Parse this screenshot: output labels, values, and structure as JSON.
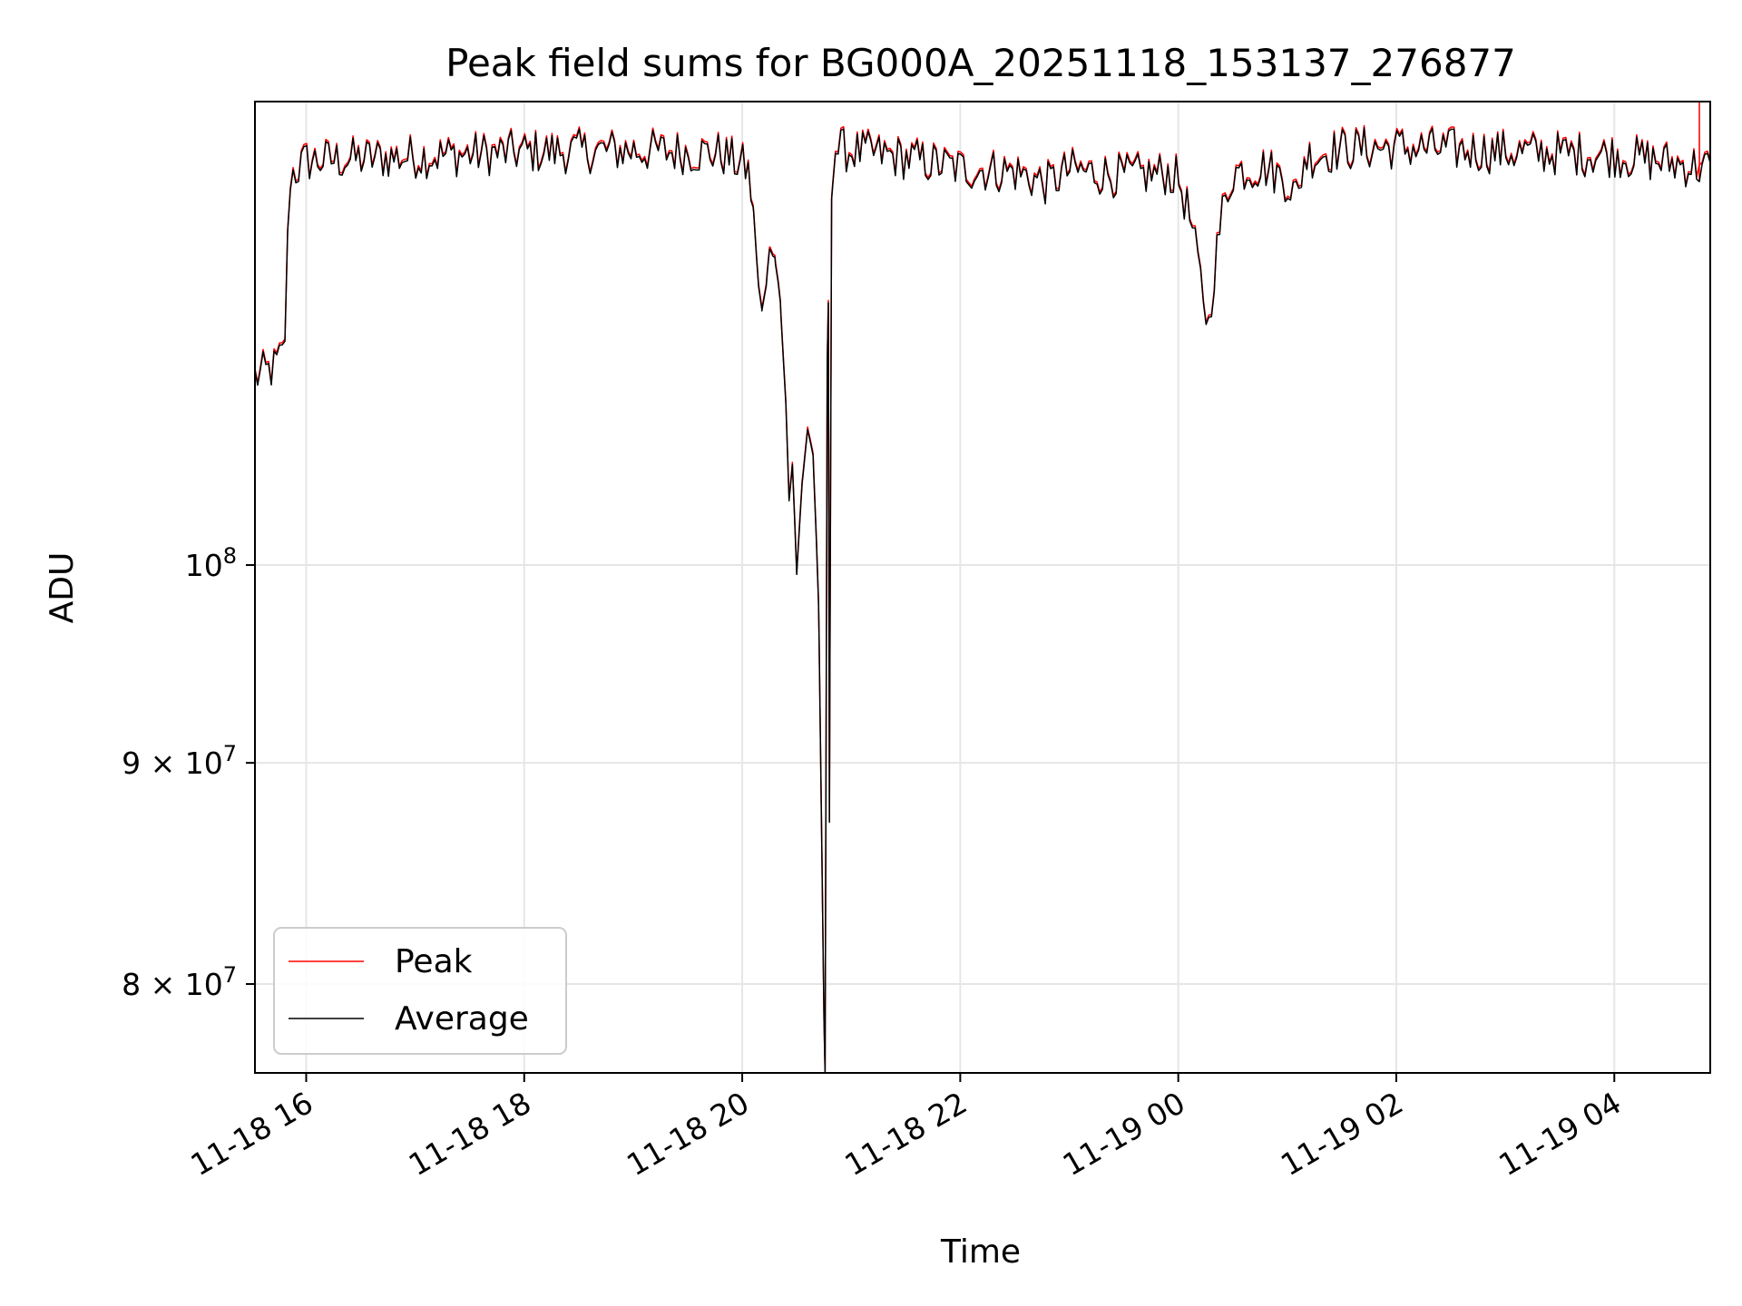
{
  "chart_data": {
    "type": "line",
    "title": "Peak field sums for BG000A_20251118_153137_276877",
    "xlabel": "Time",
    "ylabel": "ADU",
    "yscale": "log",
    "x_unit": "hours since 2025-11-18 00:00",
    "xlim": [
      15.53,
      28.88
    ],
    "ylim": [
      76300000,
      128000000
    ],
    "grid": true,
    "legend_position": "lower-left",
    "x_ticks": [
      {
        "value": 16,
        "label": "11-18 16"
      },
      {
        "value": 18,
        "label": "11-18 18"
      },
      {
        "value": 20,
        "label": "11-18 20"
      },
      {
        "value": 22,
        "label": "11-18 22"
      },
      {
        "value": 24,
        "label": "11-19 00"
      },
      {
        "value": 26,
        "label": "11-19 02"
      },
      {
        "value": 28,
        "label": "11-19 04"
      }
    ],
    "y_ticks": [
      {
        "value": 80000000,
        "mantissa": "8",
        "label": "8×10^7"
      },
      {
        "value": 90000000,
        "mantissa": "9",
        "label": "9×10^7"
      },
      {
        "value": 100000000,
        "mantissa": "",
        "label": "10^8"
      }
    ],
    "y_tick_base": "10",
    "y_tick_exponents": {
      "minor": "7",
      "major": "8"
    },
    "series": [
      {
        "name": "Peak",
        "color": "#ff0000",
        "offset": 0.4,
        "spikes": [
          {
            "x": 28.78,
            "y": 128000000
          }
        ]
      },
      {
        "name": "Average",
        "color": "#000000",
        "offset": 0
      }
    ],
    "anchors": [
      [
        15.53,
        110500000
      ],
      [
        15.7,
        111000000
      ],
      [
        15.8,
        112000000
      ],
      [
        15.85,
        123000000
      ],
      [
        16.0,
        124000000
      ],
      [
        17.0,
        124300000
      ],
      [
        18.0,
        124600000
      ],
      [
        19.0,
        124700000
      ],
      [
        19.8,
        124500000
      ],
      [
        20.05,
        123500000
      ],
      [
        20.1,
        121000000
      ],
      [
        20.15,
        116000000
      ],
      [
        20.18,
        114500000
      ],
      [
        20.22,
        116000000
      ],
      [
        20.25,
        118300000
      ],
      [
        20.3,
        117800000
      ],
      [
        20.35,
        115000000
      ],
      [
        20.4,
        109000000
      ],
      [
        20.43,
        103500000
      ],
      [
        20.46,
        105500000
      ],
      [
        20.5,
        99500000
      ],
      [
        20.55,
        104500000
      ],
      [
        20.6,
        107500000
      ],
      [
        20.65,
        106000000
      ],
      [
        20.7,
        98000000
      ],
      [
        20.73,
        86000000
      ],
      [
        20.75,
        78500000
      ],
      [
        20.76,
        76300000
      ],
      [
        20.78,
        111500000
      ],
      [
        20.79,
        115000000
      ],
      [
        20.8,
        87200000
      ],
      [
        20.82,
        121500000
      ],
      [
        20.85,
        124800000
      ],
      [
        21.5,
        124200000
      ],
      [
        22.0,
        123500000
      ],
      [
        22.5,
        123300000
      ],
      [
        22.8,
        122500000
      ],
      [
        23.0,
        123400000
      ],
      [
        23.5,
        123000000
      ],
      [
        23.9,
        123200000
      ],
      [
        24.0,
        122800000
      ],
      [
        24.1,
        120500000
      ],
      [
        24.2,
        116500000
      ],
      [
        24.28,
        113500000
      ],
      [
        24.32,
        116500000
      ],
      [
        24.4,
        120500000
      ],
      [
        24.5,
        123300000
      ],
      [
        24.8,
        123600000
      ],
      [
        25.0,
        122700000
      ],
      [
        25.1,
        121500000
      ],
      [
        25.15,
        124200000
      ],
      [
        25.5,
        124800000
      ],
      [
        26.0,
        124900000
      ],
      [
        27.0,
        124600000
      ],
      [
        28.0,
        124400000
      ],
      [
        28.88,
        123500000
      ]
    ],
    "noise_amplitude": 0.012,
    "noise_step_hours": 0.025
  },
  "legend": {
    "items": [
      {
        "label": "Peak",
        "color": "#ff0000"
      },
      {
        "label": "Average",
        "color": "#000000"
      }
    ]
  }
}
